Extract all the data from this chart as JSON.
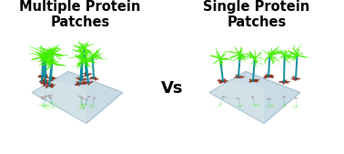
{
  "title_left": "Multiple Protein\nPatches",
  "title_right": "Single Protein\nPatches",
  "vs_text": "Vs",
  "bg_color": "#ffffff",
  "title_color": "#000000",
  "vs_color": "#000000",
  "surface_color": "#b8d0dc",
  "surface_edge": "#90b0c0",
  "protein_green": "#44ee00",
  "protein_stem": "#008899",
  "protein_base": "#883322",
  "title_fontsize": 10.5,
  "vs_fontsize": 13,
  "figsize": [
    3.78,
    1.69
  ],
  "dpi": 100
}
